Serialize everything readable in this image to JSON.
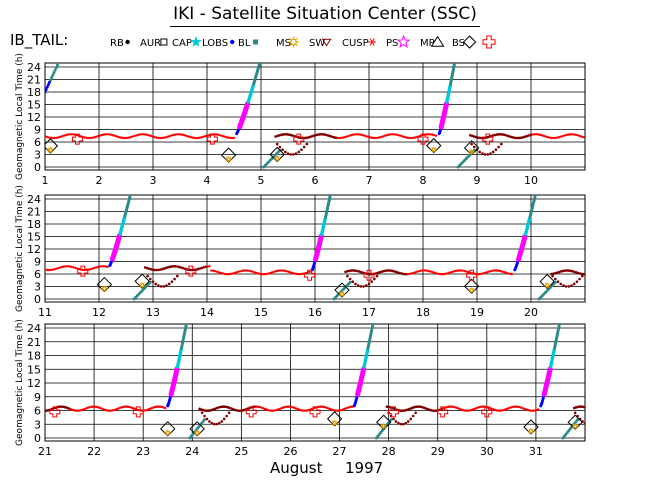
{
  "title": "IKI - Satellite Situation Center (SSC)",
  "chart_data": {
    "type": "scatter",
    "spacecraft": "IB_TAIL:",
    "xlabel_month": "August",
    "xlabel_year": "1997",
    "ylabel": "Geomagnetic Local Time (h)",
    "ylim": [
      0,
      24
    ],
    "yticks": [
      "0",
      "3",
      "6",
      "9",
      "12",
      "15",
      "18",
      "21",
      "24"
    ],
    "grid": true,
    "legend": [
      {
        "label": "RB",
        "marker": "dot",
        "color": "#000000"
      },
      {
        "label": "AUR",
        "marker": "square",
        "color": "#000000"
      },
      {
        "label": "CAP",
        "marker": "star",
        "color": "#00c8d8"
      },
      {
        "label": "LOBS",
        "marker": "dot",
        "color": "#0000ff"
      },
      {
        "label": "BL",
        "marker": "square-filled",
        "color": "#2a8a8a"
      },
      {
        "label": "MS",
        "marker": "sun",
        "color": "#e8a000"
      },
      {
        "label": "SW",
        "marker": "triangle-down",
        "color": "#800000"
      },
      {
        "label": "CUSP",
        "marker": "asterisk",
        "color": "#ff0000"
      },
      {
        "label": "PS",
        "marker": "star-open",
        "color": "#ff00ff"
      },
      {
        "label": "MP",
        "marker": "triangle-up",
        "color": "#000000"
      },
      {
        "label": "BS",
        "marker": "diamond",
        "color": "#000000"
      },
      {
        "label": "",
        "marker": "cross",
        "color": "#ff0000"
      }
    ],
    "colors": {
      "cusp": "#ff0000",
      "lobs": "#0000ff",
      "cap": "#00c8d8",
      "bl": "#2a8a8a",
      "ps": "#ff00ff",
      "ms": "#e8a000",
      "sw": "#800000",
      "cross": "#ff0000"
    },
    "panels": [
      {
        "xlim": [
          1,
          11
        ],
        "xticks": [
          "1",
          "2",
          "3",
          "4",
          "5",
          "6",
          "7",
          "8",
          "9",
          "10"
        ]
      },
      {
        "xlim": [
          11,
          21
        ],
        "xticks": [
          "11",
          "12",
          "13",
          "14",
          "15",
          "16",
          "17",
          "18",
          "19",
          "20"
        ]
      },
      {
        "xlim": [
          21,
          32
        ],
        "xticks": [
          "21",
          "22",
          "23",
          "24",
          "25",
          "26",
          "27",
          "28",
          "29",
          "30",
          "31"
        ]
      }
    ],
    "orbits": [
      {
        "apogee": 4.5,
        "apogee_glt": 8,
        "rise_start": 4.55,
        "rise_end": 5.0
      },
      {
        "apogee": 8.3,
        "apogee_glt": 8,
        "rise_start": 8.3,
        "rise_end": 8.6
      },
      {
        "apogee": 12.2,
        "apogee_glt": 8,
        "rise_start": 12.2,
        "rise_end": 12.6
      },
      {
        "apogee": 15.9,
        "apogee_glt": 7,
        "rise_start": 15.95,
        "rise_end": 16.3
      },
      {
        "apogee": 19.7,
        "apogee_glt": 7,
        "rise_start": 19.7,
        "rise_end": 20.1
      },
      {
        "apogee": 23.5,
        "apogee_glt": 7,
        "rise_start": 23.5,
        "rise_end": 23.9
      },
      {
        "apogee": 27.3,
        "apogee_glt": 7,
        "rise_start": 27.3,
        "rise_end": 27.7
      },
      {
        "apogee": 31.1,
        "apogee_glt": 7,
        "rise_start": 31.1,
        "rise_end": 31.5
      }
    ],
    "crosses": [
      1.6,
      4.1,
      5.7,
      8.0,
      9.2,
      11.7,
      13.7,
      15.9,
      17.0,
      18.9,
      21.2,
      22.9,
      25.2,
      26.5,
      28.1,
      29.1,
      30.0
    ],
    "diamonds": [
      1.1,
      4.4,
      5.3,
      8.2,
      8.9,
      12.1,
      12.8,
      16.5,
      18.9,
      20.3,
      23.5,
      24.1,
      26.9,
      27.9,
      30.9,
      31.8
    ]
  }
}
